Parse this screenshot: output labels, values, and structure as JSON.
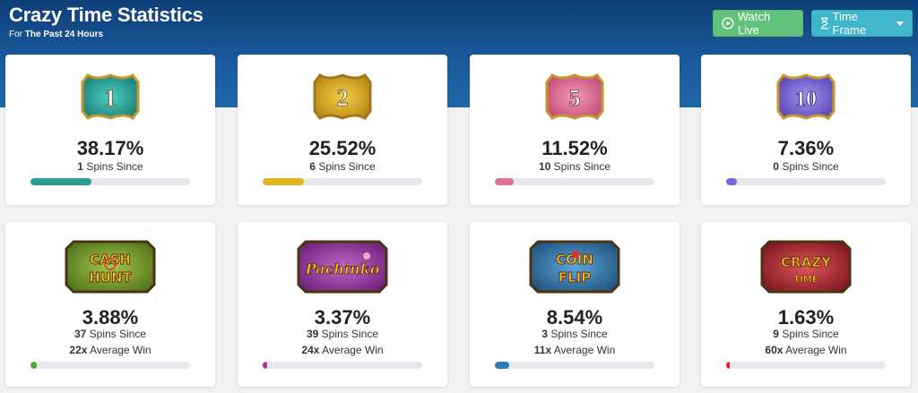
{
  "header": {
    "title": "Crazy Time Statistics",
    "subtitle_prefix": "For",
    "subtitle_period": "The Past 24 Hours"
  },
  "buttons": {
    "watch_live": "Watch Live",
    "time_frame": "Time Frame"
  },
  "colors": {
    "watch_live": "#62c27a",
    "time_frame": "#3fb6c9",
    "header_bg": "#1a5c9e"
  },
  "segments": [
    {
      "label": "1",
      "percent": "38.17%",
      "spins_since": "1",
      "spins_label": "Spins Since",
      "bar_fraction": 0.38,
      "color": "#2a9d92",
      "icon": "number-1-badge-icon"
    },
    {
      "label": "2",
      "percent": "25.52%",
      "spins_since": "6",
      "spins_label": "Spins Since",
      "bar_fraction": 0.26,
      "color": "#e2b31b",
      "icon": "number-2-badge-icon"
    },
    {
      "label": "5",
      "percent": "11.52%",
      "spins_since": "10",
      "spins_label": "Spins Since",
      "bar_fraction": 0.12,
      "color": "#e0729a",
      "icon": "number-5-badge-icon"
    },
    {
      "label": "10",
      "percent": "7.36%",
      "spins_since": "0",
      "spins_label": "Spins Since",
      "bar_fraction": 0.07,
      "color": "#7b68d8",
      "icon": "number-10-badge-icon"
    }
  ],
  "bonus_games": [
    {
      "logo_line1": "CASH",
      "logo_line2": "HUNT",
      "percent": "3.88%",
      "spins_since": "37",
      "spins_label": "Spins Since",
      "avg_win": "22x",
      "avg_label": "Average Win",
      "bar_fraction": 0.04,
      "color": "#4ca83c",
      "icon": "cash-hunt-logo-icon"
    },
    {
      "logo_line1": "Pachinko",
      "logo_line2": "",
      "percent": "3.37%",
      "spins_since": "39",
      "spins_label": "Spins Since",
      "avg_win": "24x",
      "avg_label": "Average Win",
      "bar_fraction": 0.03,
      "color": "#9c3f9c",
      "icon": "pachinko-logo-icon"
    },
    {
      "logo_line1": "COIN",
      "logo_line2": "FLIP",
      "percent": "8.54%",
      "spins_since": "3",
      "spins_label": "Spins Since",
      "avg_win": "11x",
      "avg_label": "Average Win",
      "bar_fraction": 0.09,
      "color": "#2e78b5",
      "icon": "coin-flip-logo-icon"
    },
    {
      "logo_line1": "CRAZY",
      "logo_line2": "TIME",
      "percent": "1.63%",
      "spins_since": "9",
      "spins_label": "Spins Since",
      "avg_win": "60x",
      "avg_label": "Average Win",
      "bar_fraction": 0.01,
      "color": "#d7263d",
      "icon": "crazy-time-logo-icon"
    }
  ]
}
